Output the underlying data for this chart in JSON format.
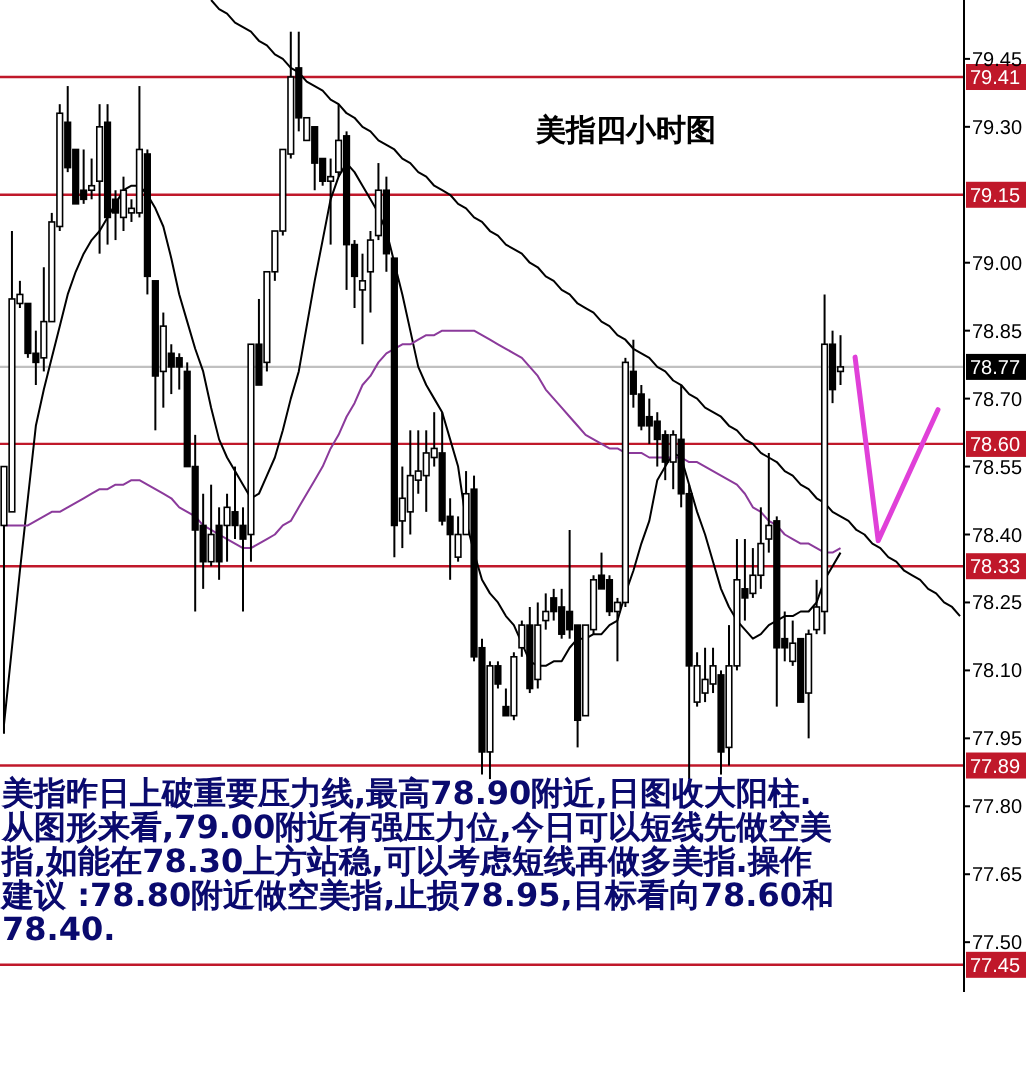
{
  "chart_data": {
    "type": "candlestick",
    "title": "美指四小时图",
    "categories": [
      null,
      null,
      null,
      null,
      null,
      null,
      null,
      null,
      null,
      null,
      null,
      null,
      null,
      null,
      null,
      null,
      null,
      null,
      null,
      null,
      null,
      null,
      null,
      null,
      null,
      null,
      null,
      null,
      null,
      null,
      null,
      null,
      null,
      null,
      null,
      null,
      null,
      null,
      null,
      null,
      null,
      null,
      null,
      null,
      null,
      null,
      null,
      null,
      null,
      null,
      null,
      null,
      null,
      null,
      null,
      null,
      null,
      null,
      null,
      null,
      null,
      null,
      null,
      null,
      null,
      null,
      null,
      null,
      null,
      null,
      null,
      null,
      null,
      null,
      null,
      null,
      null,
      null,
      null,
      null,
      null,
      null,
      null,
      null,
      null,
      null,
      null,
      null,
      null,
      null,
      null,
      null,
      null,
      null,
      null,
      null,
      null,
      null,
      null,
      null,
      null,
      null,
      null,
      null,
      null,
      null,
      null,
      null,
      null,
      null,
      null,
      null,
      null,
      null,
      null,
      null,
      null,
      null,
      null,
      null,
      null
    ],
    "ohlc": [
      [
        78.42,
        78.55,
        77.96,
        78.55
      ],
      [
        78.45,
        79.07,
        78.45,
        78.92
      ],
      [
        78.91,
        78.96,
        78.9,
        78.93
      ],
      [
        78.91,
        78.91,
        78.79,
        78.8
      ],
      [
        78.8,
        78.85,
        78.73,
        78.78
      ],
      [
        78.79,
        78.99,
        78.76,
        78.87
      ],
      [
        78.87,
        79.11,
        78.87,
        79.09
      ],
      [
        79.08,
        79.35,
        79.07,
        79.33
      ],
      [
        79.31,
        79.39,
        79.2,
        79.21
      ],
      [
        79.25,
        79.25,
        79.13,
        79.13
      ],
      [
        79.16,
        79.25,
        79.13,
        79.14
      ],
      [
        79.16,
        79.23,
        79.14,
        79.17
      ],
      [
        79.18,
        79.35,
        79.02,
        79.3
      ],
      [
        79.31,
        79.35,
        79.04,
        79.1
      ],
      [
        79.14,
        79.16,
        79.05,
        79.11
      ],
      [
        79.1,
        79.19,
        79.07,
        79.16
      ],
      [
        79.11,
        79.14,
        79.09,
        79.12
      ],
      [
        79.11,
        79.39,
        79.1,
        79.25
      ],
      [
        79.24,
        79.25,
        78.93,
        78.97
      ],
      [
        78.96,
        78.96,
        78.63,
        78.75
      ],
      [
        78.76,
        78.89,
        78.68,
        78.86
      ],
      [
        78.8,
        78.82,
        78.71,
        78.77
      ],
      [
        78.79,
        78.8,
        78.72,
        78.77
      ],
      [
        78.76,
        78.78,
        78.55,
        78.55
      ],
      [
        78.55,
        78.62,
        78.23,
        78.41
      ],
      [
        78.42,
        78.49,
        78.28,
        78.34
      ],
      [
        78.34,
        78.51,
        78.33,
        78.4
      ],
      [
        78.42,
        78.46,
        78.3,
        78.34
      ],
      [
        78.42,
        78.49,
        78.34,
        78.46
      ],
      [
        78.45,
        78.55,
        78.39,
        78.42
      ],
      [
        78.42,
        78.46,
        78.23,
        78.39
      ],
      [
        78.4,
        78.82,
        78.34,
        78.82
      ],
      [
        78.82,
        78.92,
        78.73,
        78.73
      ],
      [
        78.78,
        78.98,
        78.76,
        78.98
      ],
      [
        78.98,
        79.07,
        78.96,
        79.07
      ],
      [
        79.07,
        79.25,
        79.06,
        79.25
      ],
      [
        79.24,
        79.51,
        79.23,
        79.41
      ],
      [
        79.43,
        79.51,
        79.29,
        79.32
      ],
      [
        79.27,
        79.32,
        79.27,
        79.32
      ],
      [
        79.3,
        79.3,
        79.16,
        79.22
      ],
      [
        79.23,
        79.23,
        79.17,
        79.18
      ],
      [
        79.18,
        79.23,
        79.04,
        79.19
      ],
      [
        79.2,
        79.35,
        79.19,
        79.27
      ],
      [
        79.28,
        79.29,
        78.94,
        79.04
      ],
      [
        79.04,
        79.05,
        78.9,
        78.97
      ],
      [
        78.94,
        79.02,
        78.82,
        78.96
      ],
      [
        78.98,
        79.07,
        78.89,
        79.05
      ],
      [
        79.06,
        79.22,
        79.05,
        79.16
      ],
      [
        79.16,
        79.19,
        78.98,
        79.02
      ],
      [
        79.01,
        79.01,
        78.35,
        78.42
      ],
      [
        78.43,
        78.55,
        78.37,
        78.48
      ],
      [
        78.45,
        78.63,
        78.4,
        78.53
      ],
      [
        78.52,
        78.63,
        78.49,
        78.54
      ],
      [
        78.53,
        78.63,
        78.45,
        78.58
      ],
      [
        78.57,
        78.67,
        78.55,
        78.59
      ],
      [
        78.58,
        78.67,
        78.42,
        78.43
      ],
      [
        78.44,
        78.48,
        78.3,
        78.4
      ],
      [
        78.35,
        78.44,
        78.34,
        78.4
      ],
      [
        78.4,
        78.54,
        78.4,
        78.49
      ],
      [
        78.5,
        78.53,
        78.12,
        78.13
      ],
      [
        78.15,
        78.17,
        77.87,
        77.92
      ],
      [
        77.92,
        78.12,
        77.86,
        78.11
      ],
      [
        78.11,
        78.12,
        78.06,
        78.07
      ],
      [
        78.02,
        78.06,
        78.0,
        78.0
      ],
      [
        78.0,
        78.14,
        77.99,
        78.13
      ],
      [
        78.15,
        78.21,
        78.13,
        78.2
      ],
      [
        78.2,
        78.24,
        78.05,
        78.06
      ],
      [
        78.08,
        78.25,
        78.06,
        78.2
      ],
      [
        78.21,
        78.27,
        78.19,
        78.23
      ],
      [
        78.26,
        78.28,
        78.21,
        78.23
      ],
      [
        78.24,
        78.28,
        78.17,
        78.18
      ],
      [
        78.23,
        78.41,
        78.17,
        78.19
      ],
      [
        78.2,
        78.2,
        77.93,
        77.99
      ],
      [
        78.0,
        78.2,
        78.0,
        78.2
      ],
      [
        78.19,
        78.31,
        78.18,
        78.3
      ],
      [
        78.31,
        78.36,
        78.28,
        78.28
      ],
      [
        78.3,
        78.31,
        78.22,
        78.23
      ],
      [
        78.23,
        78.26,
        78.12,
        78.25
      ],
      [
        78.25,
        78.79,
        78.24,
        78.78
      ],
      [
        78.76,
        78.83,
        78.68,
        78.71
      ],
      [
        78.71,
        78.73,
        78.63,
        78.64
      ],
      [
        78.66,
        78.7,
        78.6,
        78.64
      ],
      [
        78.65,
        78.67,
        78.55,
        78.61
      ],
      [
        78.62,
        78.63,
        78.52,
        78.56
      ],
      [
        78.56,
        78.63,
        78.5,
        78.62
      ],
      [
        78.61,
        78.73,
        78.46,
        78.49
      ],
      [
        78.49,
        78.51,
        77.86,
        78.11
      ],
      [
        78.03,
        78.14,
        78.02,
        78.11
      ],
      [
        78.05,
        78.15,
        78.03,
        78.08
      ],
      [
        78.07,
        78.15,
        78.05,
        78.11
      ],
      [
        78.09,
        78.1,
        77.87,
        77.92
      ],
      [
        77.93,
        78.2,
        77.89,
        78.11
      ],
      [
        78.11,
        78.39,
        78.1,
        78.3
      ],
      [
        78.28,
        78.39,
        78.21,
        78.26
      ],
      [
        78.27,
        78.37,
        78.26,
        78.31
      ],
      [
        78.31,
        78.46,
        78.28,
        78.38
      ],
      [
        78.39,
        78.58,
        78.36,
        78.42
      ],
      [
        78.43,
        78.44,
        78.02,
        78.15
      ],
      [
        78.17,
        78.23,
        78.12,
        78.15
      ],
      [
        78.12,
        78.21,
        78.11,
        78.16
      ],
      [
        78.17,
        78.17,
        78.03,
        78.03
      ],
      [
        78.05,
        78.19,
        77.95,
        78.18
      ],
      [
        78.19,
        78.3,
        78.18,
        78.24
      ],
      [
        78.23,
        78.93,
        78.18,
        78.82
      ],
      [
        78.82,
        78.85,
        78.69,
        78.72
      ],
      [
        78.76,
        78.84,
        78.73,
        78.77
      ],
      null,
      null,
      null,
      null,
      null,
      null,
      null,
      null,
      null,
      null,
      null,
      null,
      null,
      null,
      null
    ],
    "series": [
      {
        "type": "line",
        "color": "#000000",
        "values": [
          77.98,
          78.15,
          78.32,
          78.48,
          78.64,
          78.72,
          78.79,
          78.86,
          78.93,
          78.98,
          79.02,
          79.05,
          79.07,
          79.1,
          79.13,
          79.16,
          79.17,
          79.17,
          79.15,
          79.12,
          79.08,
          79.01,
          78.93,
          78.87,
          78.81,
          78.76,
          78.68,
          78.61,
          78.57,
          78.54,
          78.51,
          78.48,
          78.49,
          78.53,
          78.57,
          78.63,
          78.7,
          78.76,
          78.86,
          78.96,
          79.05,
          79.14,
          79.19,
          79.22,
          79.2,
          79.17,
          79.14,
          79.11,
          79.07,
          79.0,
          78.93,
          78.85,
          78.77,
          78.73,
          78.7,
          78.67,
          78.61,
          78.55,
          78.43,
          78.36,
          78.3,
          78.27,
          78.25,
          78.22,
          78.2,
          78.16,
          78.12,
          78.11,
          78.11,
          78.12,
          78.12,
          78.15,
          78.17,
          78.17,
          78.18,
          78.18,
          78.2,
          78.21,
          78.27,
          78.32,
          78.38,
          78.43,
          78.52,
          78.55,
          78.58,
          78.57,
          78.51,
          78.45,
          78.4,
          78.34,
          78.28,
          78.24,
          78.21,
          78.19,
          78.17,
          78.18,
          78.2,
          78.21,
          78.22,
          78.22,
          78.23,
          78.23,
          78.25,
          78.3,
          78.33,
          78.36,
          null,
          null,
          null,
          null,
          null,
          null,
          null,
          null,
          null,
          null,
          null,
          null,
          null,
          null,
          null
        ]
      },
      {
        "type": "line",
        "color": "#8b3a9b",
        "values": [
          78.42,
          78.42,
          78.42,
          78.42,
          78.43,
          78.44,
          78.45,
          78.45,
          78.46,
          78.47,
          78.48,
          78.49,
          78.5,
          78.5,
          78.51,
          78.51,
          78.52,
          78.52,
          78.51,
          78.5,
          78.49,
          78.48,
          78.46,
          78.45,
          78.44,
          78.42,
          78.41,
          78.4,
          78.39,
          78.38,
          78.37,
          78.37,
          78.38,
          78.39,
          78.4,
          78.42,
          78.43,
          78.46,
          78.49,
          78.52,
          78.55,
          78.59,
          78.62,
          78.66,
          78.69,
          78.73,
          78.75,
          78.78,
          78.8,
          78.81,
          78.82,
          78.82,
          78.83,
          78.84,
          78.84,
          78.85,
          78.85,
          78.85,
          78.85,
          78.85,
          78.84,
          78.83,
          78.82,
          78.81,
          78.8,
          78.79,
          78.77,
          78.75,
          78.72,
          78.7,
          78.68,
          78.66,
          78.64,
          78.62,
          78.61,
          78.6,
          78.59,
          78.59,
          78.58,
          78.58,
          78.58,
          78.57,
          78.57,
          78.57,
          78.57,
          78.57,
          78.56,
          78.56,
          78.55,
          78.54,
          78.53,
          78.52,
          78.51,
          78.49,
          78.46,
          78.45,
          78.43,
          78.42,
          78.4,
          78.39,
          78.38,
          78.38,
          78.37,
          78.36,
          78.36,
          78.37,
          null,
          null,
          null,
          null,
          null,
          null,
          null,
          null,
          null,
          null,
          null,
          null,
          null,
          null,
          null
        ]
      },
      {
        "type": "line",
        "color": "#000000",
        "values": [
          null,
          null,
          null,
          null,
          null,
          null,
          null,
          null,
          null,
          null,
          null,
          null,
          null,
          null,
          null,
          null,
          null,
          null,
          null,
          null,
          null,
          null,
          null,
          null,
          null,
          null,
          79.58,
          79.56,
          79.55,
          79.53,
          79.52,
          79.51,
          79.49,
          79.48,
          79.46,
          79.45,
          79.43,
          79.42,
          79.4,
          79.39,
          79.38,
          79.36,
          79.35,
          79.33,
          79.32,
          79.3,
          79.29,
          79.27,
          79.26,
          79.25,
          79.23,
          79.22,
          79.2,
          79.19,
          79.17,
          79.16,
          79.15,
          79.13,
          79.12,
          79.1,
          79.09,
          79.07,
          79.06,
          79.04,
          79.03,
          79.02,
          79.0,
          78.99,
          78.97,
          78.96,
          78.94,
          78.93,
          78.91,
          78.9,
          78.89,
          78.87,
          78.86,
          78.84,
          78.83,
          78.81,
          78.8,
          78.79,
          78.77,
          78.76,
          78.74,
          78.73,
          78.71,
          78.7,
          78.68,
          78.67,
          78.66,
          78.64,
          78.63,
          78.61,
          78.6,
          78.58,
          78.57,
          78.56,
          78.54,
          78.53,
          78.51,
          78.5,
          78.48,
          78.47,
          78.45,
          78.44,
          78.43,
          78.41,
          78.4,
          78.38,
          78.37,
          78.35,
          78.34,
          78.32,
          78.31,
          78.3,
          78.28,
          78.27,
          78.25,
          78.24,
          78.22
        ]
      }
    ],
    "ylim": [
      77.39,
      79.58
    ],
    "yticks": [
      {
        "value": 77.5,
        "label": "77.50"
      },
      77.65,
      {
        "value": 77.8,
        "label": "77.80"
      },
      77.95,
      {
        "value": 78.1,
        "label": "78.10"
      },
      78.25,
      {
        "value": 78.4,
        "label": "78.40"
      },
      78.55,
      {
        "value": 78.7,
        "label": "78.70"
      },
      78.85,
      {
        "value": 79.0,
        "label": "79.00"
      },
      {
        "value": 79.3,
        "label": "79.30"
      },
      79.45
    ],
    "tick_labels": "y",
    "ref_lines": [
      {
        "axis": "y",
        "value": 79.41,
        "label": "79.41",
        "color": "#c0182a"
      },
      {
        "axis": "y",
        "value": 79.15,
        "label": "79.15",
        "color": "#c0182a"
      },
      {
        "axis": "y",
        "value": 78.77,
        "label": "78.77",
        "color": "#c0c0c0"
      },
      {
        "axis": "y",
        "value": 78.6,
        "label": "78.60",
        "color": "#c0182a"
      },
      {
        "axis": "y",
        "value": 78.33,
        "label": "78.33",
        "color": "#c0182a"
      },
      {
        "axis": "y",
        "value": 77.89,
        "label": "77.89",
        "color": "#c0182a"
      },
      {
        "axis": "y",
        "value": 77.45,
        "label": "77.45",
        "color": "#c0182a"
      }
    ],
    "annotations": [
      "美指昨日上破重要压力线,最高78.90附近,日图收大阳柱.从图形来看,79.00附近有强压力位,今日可以短线先做空美指,如能在78.30上方站稳,可以考虑短线再做多美指.操作建议 :78.80附近做空美指,止损78.95,目标看向78.60和78.40."
    ]
  }
}
